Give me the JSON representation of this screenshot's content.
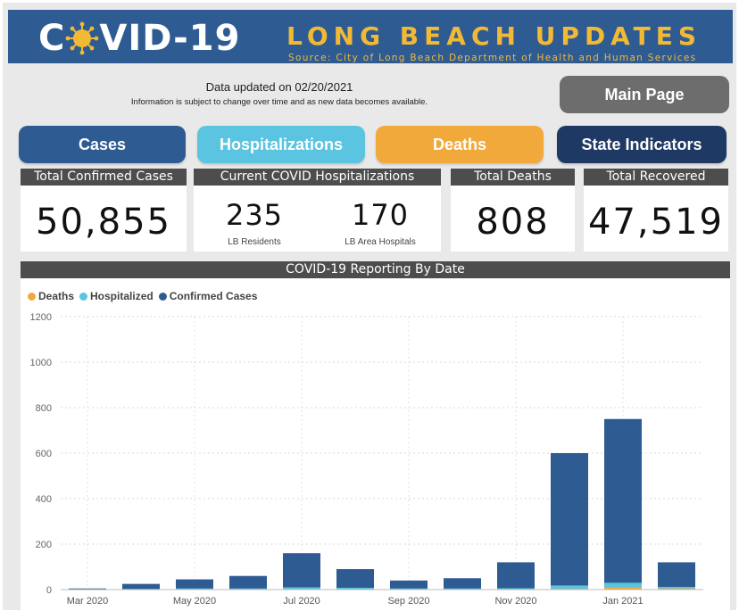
{
  "banner": {
    "logo_left": "C",
    "logo_right": "VID-19",
    "title": "LONG BEACH UPDATES",
    "source": "Source: City of Long Beach Department of Health and Human Services"
  },
  "header": {
    "updated": "Data updated on 02/20/2021",
    "disclaimer": "Information is subject to change over time and as new data becomes available.",
    "main_page_label": "Main Page"
  },
  "nav": {
    "cases": "Cases",
    "hospitalizations": "Hospitalizations",
    "deaths": "Deaths",
    "state_indicators": "State Indicators"
  },
  "cards": {
    "confirmed": {
      "title": "Total Confirmed Cases",
      "value": "50,855"
    },
    "hospitalizations": {
      "title": "Current COVID Hospitalizations",
      "residents_value": "235",
      "residents_label": "LB Residents",
      "hospitals_value": "170",
      "hospitals_label": "LB Area Hospitals"
    },
    "deaths": {
      "title": "Total Deaths",
      "value": "808"
    },
    "recovered": {
      "title": "Total Recovered",
      "value": "47,519"
    }
  },
  "colors": {
    "banner": "#2f5b93",
    "accent_yellow": "#f2b935",
    "cases": "#2f5b93",
    "hospitalizations": "#5bc4e0",
    "deaths": "#f2a93b",
    "state_indicators": "#1e3a64",
    "main_page": "#6d6d6d"
  },
  "chart_data": {
    "type": "bar",
    "title": "COVID-19 Reporting By Date",
    "x": [
      "Mar 2020",
      "Apr 2020",
      "May 2020",
      "Jun 2020",
      "Jul 2020",
      "Aug 2020",
      "Sep 2020",
      "Oct 2020",
      "Nov 2020",
      "Dec 2020",
      "Jan 2021",
      "Feb 2021"
    ],
    "series": [
      {
        "name": "Deaths",
        "color": "#f2a93b",
        "values": [
          0,
          0,
          1,
          1,
          2,
          2,
          1,
          1,
          1,
          4,
          10,
          5
        ]
      },
      {
        "name": "Hospitalized",
        "color": "#5bc4e0",
        "values": [
          1,
          3,
          5,
          5,
          10,
          8,
          5,
          5,
          6,
          18,
          30,
          12
        ]
      },
      {
        "name": "Confirmed Cases",
        "color": "#2f5b93",
        "values": [
          5,
          25,
          45,
          60,
          160,
          90,
          40,
          50,
          120,
          600,
          750,
          120
        ]
      }
    ],
    "xticks": [
      "Mar 2020",
      "May 2020",
      "Jul 2020",
      "Sep 2020",
      "Nov 2020",
      "Jan 2021"
    ],
    "yticks": [
      0,
      200,
      400,
      600,
      800,
      1000,
      1200
    ],
    "ylim": [
      0,
      1200
    ],
    "grid": true,
    "legend": "top-left"
  }
}
